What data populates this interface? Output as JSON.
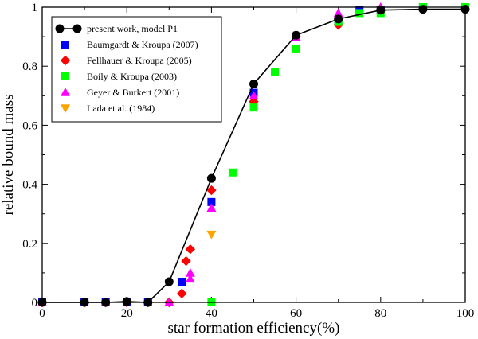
{
  "chart_data": {
    "type": "scatter",
    "title": "",
    "xlabel": "star formation efficiency(%)",
    "ylabel": "relative bound mass",
    "xlim": [
      0,
      100
    ],
    "ylim": [
      0,
      1.0
    ],
    "xticks": [
      0,
      20,
      40,
      60,
      80,
      100
    ],
    "yticks": [
      0,
      0.2,
      0.4,
      0.6,
      0.8,
      1.0
    ],
    "xtick_labels": [
      "0",
      "20",
      "40",
      "60",
      "80",
      "100"
    ],
    "ytick_labels": [
      "0",
      "0.2",
      "0.4",
      "0.6",
      "0.8",
      "1"
    ],
    "grid": false,
    "legend_position": "top-left",
    "series": [
      {
        "name": "present work, model P1",
        "marker": "circle",
        "line": true,
        "color": "#000000",
        "x": [
          0,
          10,
          15,
          20,
          25,
          30,
          40,
          50,
          60,
          70,
          80,
          90,
          100
        ],
        "y": [
          0,
          0,
          0,
          0.003,
          0,
          0.07,
          0.42,
          0.74,
          0.905,
          0.96,
          0.99,
          0.993,
          0.993
        ]
      },
      {
        "name": "Baumgardt & Kroupa (2007)",
        "marker": "square",
        "line": false,
        "color": "#0000ff",
        "x": [
          0,
          10,
          15,
          20,
          25,
          33,
          40,
          50,
          60,
          70,
          75,
          80,
          90,
          100
        ],
        "y": [
          0,
          0,
          0,
          0,
          0,
          0.07,
          0.34,
          0.71,
          0.9,
          0.95,
          0.99,
          0.99,
          1.0,
          1.0
        ]
      },
      {
        "name": "Fellhauer & Kroupa (2005)",
        "marker": "diamond",
        "line": false,
        "color": "#ff0000",
        "x": [
          0,
          10,
          15,
          20,
          25,
          30,
          33,
          34,
          35,
          40,
          50,
          60,
          70
        ],
        "y": [
          0,
          0,
          0,
          0,
          0,
          0,
          0.03,
          0.14,
          0.18,
          0.38,
          0.68,
          0.9,
          0.94
        ]
      },
      {
        "name": "Boily & Kroupa (2003)",
        "marker": "square",
        "line": false,
        "color": "#00ff00",
        "x": [
          40,
          45,
          50,
          55,
          60,
          70,
          75,
          80,
          90,
          100
        ],
        "y": [
          0,
          0.44,
          0.66,
          0.78,
          0.86,
          0.95,
          0.98,
          0.98,
          1.0,
          1.0
        ]
      },
      {
        "name": "Geyer & Burkert (2001)",
        "marker": "triangle-up",
        "line": false,
        "color": "#ff00ff",
        "x": [
          0,
          15,
          30,
          35,
          35,
          40,
          50,
          60,
          70,
          80
        ],
        "y": [
          0,
          0,
          0,
          0.08,
          0.1,
          0.32,
          0.7,
          0.9,
          0.98,
          1.0
        ]
      },
      {
        "name": "Lada et al. (1984)",
        "marker": "triangle-down",
        "line": false,
        "color": "#ffa500",
        "x": [
          40
        ],
        "y": [
          0.23
        ]
      }
    ]
  }
}
